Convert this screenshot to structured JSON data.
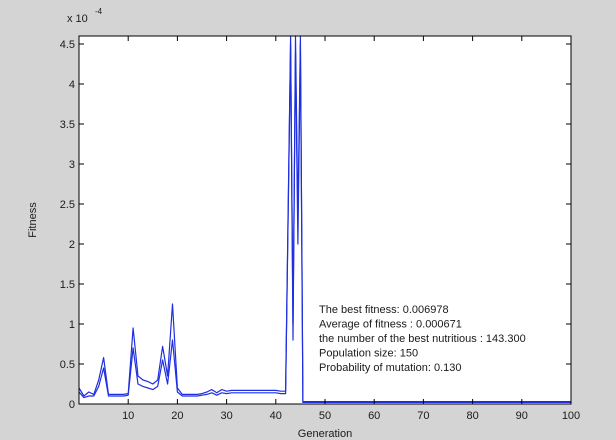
{
  "chart_data": {
    "type": "line",
    "title": "",
    "xlabel": "Generation",
    "ylabel": "Fitness",
    "xlim": [
      0,
      100
    ],
    "ylim": [
      0,
      4.6
    ],
    "y_exponent_label": "x 10",
    "y_exponent_power": "-4",
    "x_ticks": [
      10,
      20,
      30,
      40,
      50,
      60,
      70,
      80,
      90,
      100
    ],
    "x_tick_labels": [
      "10",
      "20",
      "30",
      "40",
      "50",
      "60",
      "70",
      "80",
      "90",
      "100"
    ],
    "y_ticks": [
      0,
      0.5,
      1,
      1.5,
      2,
      2.5,
      3,
      3.5,
      4,
      4.5
    ],
    "y_tick_labels": [
      "0",
      "0.5",
      "1",
      "1.5",
      "2",
      "2.5",
      "3",
      "3.5",
      "4",
      "4.5"
    ],
    "grid": false,
    "line_color": "#1f2fe0",
    "series": [
      {
        "x": [
          0,
          1,
          2,
          3,
          4,
          5,
          6,
          7,
          8,
          9,
          10,
          11,
          12,
          13,
          14,
          15,
          16,
          17,
          18,
          19,
          20,
          21,
          22,
          23,
          24,
          25,
          26,
          27,
          28,
          29,
          30,
          31,
          32,
          33,
          34,
          35,
          36,
          37,
          38,
          39,
          40,
          41,
          42,
          43,
          43.5,
          44,
          44.5,
          45,
          45.5,
          46,
          50,
          60,
          70,
          80,
          90,
          100
        ],
        "y": [
          0.2,
          0.1,
          0.15,
          0.12,
          0.3,
          0.58,
          0.12,
          0.12,
          0.12,
          0.12,
          0.13,
          0.95,
          0.35,
          0.3,
          0.28,
          0.25,
          0.3,
          0.72,
          0.35,
          1.25,
          0.2,
          0.12,
          0.12,
          0.12,
          0.12,
          0.13,
          0.15,
          0.18,
          0.14,
          0.18,
          0.16,
          0.17,
          0.17,
          0.17,
          0.17,
          0.17,
          0.17,
          0.17,
          0.17,
          0.17,
          0.17,
          0.16,
          0.16,
          4.6,
          0.8,
          4.6,
          2.3,
          4.6,
          0.03,
          0.03,
          0.03,
          0.03,
          0.03,
          0.03,
          0.03,
          0.03
        ]
      },
      {
        "x": [
          0,
          1,
          2,
          3,
          4,
          5,
          6,
          7,
          8,
          9,
          10,
          11,
          12,
          13,
          14,
          15,
          16,
          17,
          18,
          19,
          20,
          21,
          22,
          23,
          24,
          25,
          26,
          27,
          28,
          29,
          30,
          31,
          32,
          33,
          34,
          35,
          36,
          37,
          38,
          39,
          40,
          41,
          42,
          43,
          43.5,
          44,
          44.5,
          45,
          45.5,
          46,
          50,
          60,
          70,
          80,
          90,
          100
        ],
        "y": [
          0.15,
          0.08,
          0.1,
          0.1,
          0.22,
          0.45,
          0.1,
          0.1,
          0.1,
          0.1,
          0.11,
          0.7,
          0.25,
          0.22,
          0.2,
          0.18,
          0.22,
          0.55,
          0.25,
          0.8,
          0.15,
          0.1,
          0.1,
          0.1,
          0.1,
          0.11,
          0.12,
          0.14,
          0.11,
          0.14,
          0.13,
          0.14,
          0.14,
          0.14,
          0.14,
          0.14,
          0.14,
          0.14,
          0.14,
          0.14,
          0.14,
          0.13,
          0.13,
          4.5,
          1.0,
          4.4,
          2.0,
          4.5,
          0.02,
          0.02,
          0.02,
          0.02,
          0.02,
          0.02,
          0.02,
          0.02
        ]
      }
    ]
  },
  "annotations": [
    "The best fitness: 0.006978",
    "Average of fitness : 0.000671",
    "the number of the best nutritious : 143.300",
    "Population size: 150",
    "Probability of mutation: 0.130"
  ]
}
